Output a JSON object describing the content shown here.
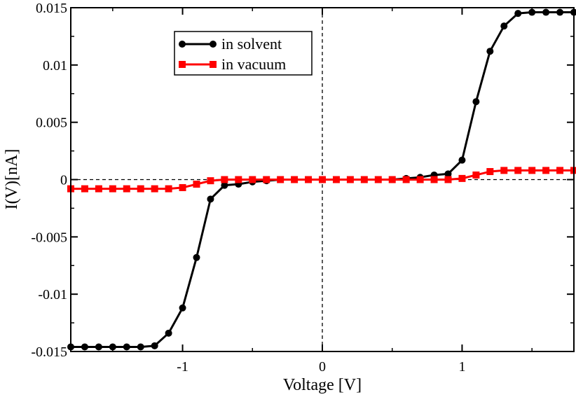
{
  "chart_data": {
    "type": "line",
    "title": "",
    "xlabel": "Voltage [V]",
    "ylabel": "I(V)[nA]",
    "xlim": [
      -1.8,
      1.8
    ],
    "ylim": [
      -0.015,
      0.015
    ],
    "x_ticks": [
      -1,
      0,
      1
    ],
    "x_tick_labels": [
      "-1",
      "0",
      "1"
    ],
    "y_ticks": [
      -0.015,
      -0.01,
      -0.005,
      0,
      0.005,
      0.01,
      0.015
    ],
    "y_tick_labels": [
      "-0.015",
      "-0.01",
      "-0.005",
      "0",
      "0.005",
      "0.01",
      "0.015"
    ],
    "reference_lines": {
      "x": 0,
      "y": 0,
      "style": "dashed"
    },
    "legend_position": "top-left",
    "x": [
      -1.8,
      -1.7,
      -1.6,
      -1.5,
      -1.4,
      -1.3,
      -1.2,
      -1.1,
      -1.0,
      -0.9,
      -0.8,
      -0.7,
      -0.6,
      -0.5,
      -0.4,
      -0.3,
      -0.2,
      -0.1,
      0.0,
      0.1,
      0.2,
      0.3,
      0.4,
      0.5,
      0.6,
      0.7,
      0.8,
      0.9,
      1.0,
      1.1,
      1.2,
      1.3,
      1.4,
      1.5,
      1.6,
      1.7,
      1.8
    ],
    "series": [
      {
        "name": "in solvent",
        "color": "#000000",
        "marker": "circle",
        "values": [
          -0.0146,
          -0.0146,
          -0.0146,
          -0.0146,
          -0.0146,
          -0.0146,
          -0.0145,
          -0.0134,
          -0.0112,
          -0.0068,
          -0.0017,
          -0.0005,
          -0.0004,
          -0.0002,
          -0.0001,
          0.0,
          0.0,
          0.0,
          0.0,
          0.0,
          0.0,
          0.0,
          0.0,
          0.0,
          0.0001,
          0.0002,
          0.0004,
          0.0005,
          0.0017,
          0.0068,
          0.0112,
          0.0134,
          0.0145,
          0.0146,
          0.0146,
          0.0146,
          0.0146
        ]
      },
      {
        "name": "in vacuum",
        "color": "#ff0000",
        "marker": "square",
        "values": [
          -0.0008,
          -0.0008,
          -0.0008,
          -0.0008,
          -0.0008,
          -0.0008,
          -0.0008,
          -0.0008,
          -0.0007,
          -0.0004,
          -0.0001,
          0.0,
          0.0,
          0.0,
          0.0,
          0.0,
          0.0,
          0.0,
          0.0,
          0.0,
          0.0,
          0.0,
          0.0,
          0.0,
          0.0,
          0.0,
          0.0,
          0.0,
          0.0001,
          0.0004,
          0.0007,
          0.0008,
          0.0008,
          0.0008,
          0.0008,
          0.0008,
          0.0008
        ]
      }
    ]
  }
}
